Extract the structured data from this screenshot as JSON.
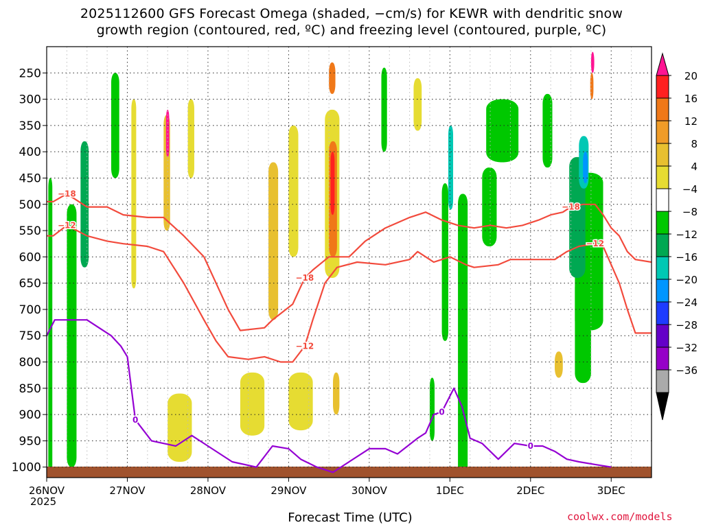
{
  "title": {
    "line1": "2025112600 GFS Forecast Omega (shaded, −cm/s) for KEWR with dendritic snow",
    "line2": "growth region (contoured, red, ºC) and freezing level (contoured, purple, ºC)"
  },
  "credit": "coolwx.com/models",
  "chart_data": {
    "type": "heatmap",
    "xlabel": "Forecast Time (UTC)",
    "year_label": "2025",
    "x_ticks": [
      "26NOV",
      "27NOV",
      "28NOV",
      "29NOV",
      "30NOV",
      "1DEC",
      "2DEC",
      "3DEC"
    ],
    "x_range_days": [
      0,
      7.5
    ],
    "y_ticks": [
      250,
      300,
      350,
      400,
      450,
      500,
      550,
      600,
      650,
      700,
      750,
      800,
      850,
      900,
      950,
      1000
    ],
    "y_range_hpa": [
      200,
      1020
    ],
    "grid": true,
    "colorbar": {
      "labels": [
        "20",
        "16",
        "12",
        "8",
        "4",
        "−4",
        "−8",
        "−12",
        "−16",
        "−20",
        "−24",
        "−28",
        "−32",
        "−36"
      ],
      "colors": [
        "#ff1493",
        "#ff2020",
        "#f07818",
        "#f09c28",
        "#e8c030",
        "#e6dc32",
        "#ffffff",
        "#00c800",
        "#00a852",
        "#00c8b4",
        "#0096ff",
        "#1e3cff",
        "#6400c8",
        "#9600c8",
        "#aaaaaa",
        "#000000"
      ]
    },
    "omega_regions": [
      {
        "t": 0.02,
        "p": 450,
        "dt": 0.05,
        "dp": 600,
        "value": -8
      },
      {
        "t": 0.25,
        "p": 500,
        "dt": 0.12,
        "dp": 500,
        "value": -8
      },
      {
        "t": 0.42,
        "p": 380,
        "dt": 0.1,
        "dp": 240,
        "value": -12
      },
      {
        "t": 0.8,
        "p": 250,
        "dt": 0.1,
        "dp": 200,
        "value": -8
      },
      {
        "t": 1.05,
        "p": 300,
        "dt": 0.06,
        "dp": 360,
        "value": 4
      },
      {
        "t": 1.45,
        "p": 330,
        "dt": 0.08,
        "dp": 220,
        "value": 8
      },
      {
        "t": 1.48,
        "p": 320,
        "dt": 0.04,
        "dp": 90,
        "value": 20
      },
      {
        "t": 1.75,
        "p": 300,
        "dt": 0.08,
        "dp": 150,
        "value": 4
      },
      {
        "t": 1.5,
        "p": 860,
        "dt": 0.3,
        "dp": 130,
        "value": 4
      },
      {
        "t": 2.4,
        "p": 820,
        "dt": 0.3,
        "dp": 120,
        "value": 4
      },
      {
        "t": 2.75,
        "p": 420,
        "dt": 0.12,
        "dp": 300,
        "value": 8
      },
      {
        "t": 3.0,
        "p": 350,
        "dt": 0.12,
        "dp": 250,
        "value": 4
      },
      {
        "t": 3.45,
        "p": 320,
        "dt": 0.18,
        "dp": 320,
        "value": 4
      },
      {
        "t": 3.5,
        "p": 380,
        "dt": 0.1,
        "dp": 220,
        "value": 12
      },
      {
        "t": 3.52,
        "p": 400,
        "dt": 0.05,
        "dp": 120,
        "value": 16
      },
      {
        "t": 3.5,
        "p": 230,
        "dt": 0.08,
        "dp": 60,
        "value": 12
      },
      {
        "t": 3.0,
        "p": 820,
        "dt": 0.3,
        "dp": 110,
        "value": 4
      },
      {
        "t": 3.55,
        "p": 820,
        "dt": 0.08,
        "dp": 80,
        "value": 8
      },
      {
        "t": 4.15,
        "p": 240,
        "dt": 0.07,
        "dp": 160,
        "value": -8
      },
      {
        "t": 4.55,
        "p": 260,
        "dt": 0.1,
        "dp": 100,
        "value": 4
      },
      {
        "t": 4.9,
        "p": 460,
        "dt": 0.08,
        "dp": 300,
        "value": -8
      },
      {
        "t": 4.75,
        "p": 830,
        "dt": 0.06,
        "dp": 120,
        "value": -8
      },
      {
        "t": 5.1,
        "p": 480,
        "dt": 0.12,
        "dp": 560,
        "value": -8
      },
      {
        "t": 4.98,
        "p": 350,
        "dt": 0.06,
        "dp": 160,
        "value": -16
      },
      {
        "t": 5.45,
        "p": 300,
        "dt": 0.4,
        "dp": 120,
        "value": -8
      },
      {
        "t": 5.4,
        "p": 430,
        "dt": 0.18,
        "dp": 150,
        "value": -8
      },
      {
        "t": 6.15,
        "p": 290,
        "dt": 0.12,
        "dp": 140,
        "value": -8
      },
      {
        "t": 6.55,
        "p": 440,
        "dt": 0.35,
        "dp": 300,
        "value": -8
      },
      {
        "t": 6.48,
        "p": 410,
        "dt": 0.2,
        "dp": 230,
        "value": -12
      },
      {
        "t": 6.6,
        "p": 370,
        "dt": 0.12,
        "dp": 100,
        "value": -16
      },
      {
        "t": 6.65,
        "p": 400,
        "dt": 0.06,
        "dp": 60,
        "value": -20
      },
      {
        "t": 6.55,
        "p": 640,
        "dt": 0.2,
        "dp": 200,
        "value": -8
      },
      {
        "t": 6.3,
        "p": 780,
        "dt": 0.1,
        "dp": 50,
        "value": 8
      },
      {
        "t": 6.75,
        "p": 210,
        "dt": 0.04,
        "dp": 40,
        "value": 20
      },
      {
        "t": 6.74,
        "p": 250,
        "dt": 0.04,
        "dp": 50,
        "value": 12
      }
    ],
    "contours": [
      {
        "label": "−18",
        "points": [
          [
            0.0,
            495
          ],
          [
            0.08,
            495
          ],
          [
            0.25,
            480
          ],
          [
            0.5,
            505
          ],
          [
            0.75,
            505
          ],
          [
            0.95,
            520
          ],
          [
            1.25,
            525
          ],
          [
            1.45,
            525
          ],
          [
            1.7,
            560
          ],
          [
            1.95,
            600
          ],
          [
            2.1,
            650
          ],
          [
            2.25,
            700
          ],
          [
            2.4,
            740
          ],
          [
            2.7,
            735
          ],
          [
            2.8,
            720
          ],
          [
            3.05,
            690
          ],
          [
            3.2,
            640
          ],
          [
            3.3,
            625
          ],
          [
            3.5,
            600
          ],
          [
            3.75,
            600
          ],
          [
            3.95,
            570
          ],
          [
            4.2,
            545
          ],
          [
            4.5,
            525
          ],
          [
            4.7,
            515
          ],
          [
            4.9,
            530
          ],
          [
            5.1,
            540
          ],
          [
            5.3,
            545
          ],
          [
            5.5,
            540
          ],
          [
            5.7,
            545
          ],
          [
            5.9,
            540
          ],
          [
            6.0,
            535
          ],
          [
            6.1,
            530
          ],
          [
            6.25,
            520
          ],
          [
            6.4,
            515
          ],
          [
            6.5,
            505
          ],
          [
            6.65,
            500
          ],
          [
            6.8,
            500
          ],
          [
            6.9,
            520
          ],
          [
            7.0,
            545
          ],
          [
            7.1,
            560
          ],
          [
            7.2,
            590
          ],
          [
            7.3,
            605
          ],
          [
            7.5,
            610
          ]
        ]
      },
      {
        "label": "−12",
        "points": [
          [
            0.0,
            560
          ],
          [
            0.08,
            560
          ],
          [
            0.25,
            540
          ],
          [
            0.5,
            560
          ],
          [
            0.75,
            570
          ],
          [
            0.95,
            575
          ],
          [
            1.25,
            580
          ],
          [
            1.45,
            590
          ],
          [
            1.7,
            650
          ],
          [
            1.95,
            720
          ],
          [
            2.1,
            760
          ],
          [
            2.25,
            790
          ],
          [
            2.5,
            795
          ],
          [
            2.7,
            790
          ],
          [
            2.9,
            800
          ],
          [
            3.05,
            800
          ],
          [
            3.2,
            770
          ],
          [
            3.3,
            720
          ],
          [
            3.45,
            650
          ],
          [
            3.6,
            620
          ],
          [
            3.85,
            610
          ],
          [
            4.2,
            615
          ],
          [
            4.5,
            605
          ],
          [
            4.6,
            590
          ],
          [
            4.8,
            610
          ],
          [
            5.0,
            600
          ],
          [
            5.2,
            615
          ],
          [
            5.3,
            620
          ],
          [
            5.6,
            615
          ],
          [
            5.75,
            605
          ],
          [
            6.0,
            605
          ],
          [
            6.3,
            605
          ],
          [
            6.45,
            590
          ],
          [
            6.6,
            580
          ],
          [
            6.8,
            575
          ],
          [
            6.9,
            580
          ],
          [
            7.0,
            615
          ],
          [
            7.1,
            650
          ],
          [
            7.2,
            700
          ],
          [
            7.3,
            745
          ],
          [
            7.5,
            745
          ]
        ]
      },
      {
        "label": "0",
        "points": [
          [
            0.0,
            750
          ],
          [
            0.1,
            720
          ],
          [
            0.25,
            720
          ],
          [
            0.5,
            720
          ],
          [
            0.7,
            740
          ],
          [
            0.8,
            750
          ],
          [
            0.92,
            770
          ],
          [
            1.0,
            790
          ],
          [
            1.1,
            910
          ],
          [
            1.3,
            950
          ],
          [
            1.6,
            960
          ],
          [
            1.8,
            940
          ],
          [
            2.0,
            960
          ],
          [
            2.3,
            990
          ],
          [
            2.6,
            1000
          ],
          [
            2.8,
            960
          ],
          [
            3.0,
            965
          ],
          [
            3.15,
            985
          ],
          [
            3.35,
            1000
          ],
          [
            3.55,
            1010
          ],
          [
            3.75,
            990
          ],
          [
            4.0,
            965
          ],
          [
            4.2,
            965
          ],
          [
            4.35,
            975
          ],
          [
            4.6,
            945
          ],
          [
            4.7,
            935
          ],
          [
            4.8,
            900
          ],
          [
            4.9,
            895
          ],
          [
            4.95,
            880
          ],
          [
            5.05,
            850
          ],
          [
            5.15,
            885
          ],
          [
            5.25,
            945
          ],
          [
            5.4,
            955
          ],
          [
            5.6,
            985
          ],
          [
            5.8,
            955
          ],
          [
            6.0,
            960
          ],
          [
            6.15,
            960
          ],
          [
            6.3,
            970
          ],
          [
            6.45,
            985
          ],
          [
            6.6,
            990
          ],
          [
            6.8,
            995
          ],
          [
            7.0,
            1000
          ]
        ]
      }
    ]
  }
}
